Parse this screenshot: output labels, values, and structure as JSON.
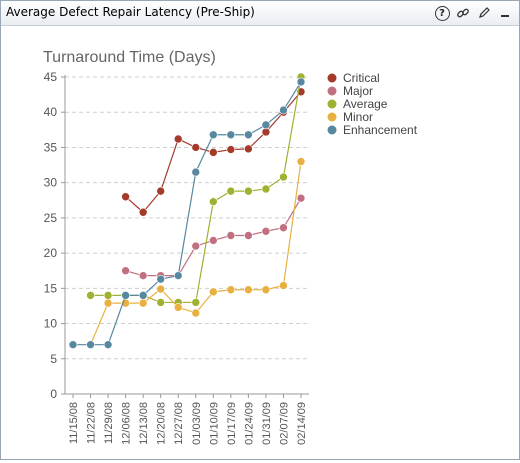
{
  "window": {
    "title": "Average Defect Repair Latency (Pre-Ship)",
    "toolbar_icons": [
      "help-icon",
      "link-icon",
      "edit-icon",
      "minimize-icon"
    ],
    "help_glyph": "?"
  },
  "chart_data": {
    "type": "line",
    "title": "Turnaround Time (Days)",
    "xlabel": "",
    "ylabel": "",
    "ylim": [
      0,
      45
    ],
    "yticks": [
      0,
      5,
      10,
      15,
      20,
      25,
      30,
      35,
      40,
      45
    ],
    "ytick_labels": [
      "0",
      "5",
      "10",
      "15",
      "20",
      "25",
      "30",
      "35",
      "40",
      "45"
    ],
    "grid": true,
    "legend_position": "top-right",
    "categories": [
      "11/15/08",
      "11/22/08",
      "11/29/08",
      "12/06/08",
      "12/13/08",
      "12/20/08",
      "12/27/08",
      "01/03/09",
      "01/10/09",
      "01/17/09",
      "01/24/09",
      "01/31/09",
      "02/07/09",
      "02/14/09"
    ],
    "series": [
      {
        "name": "Critical",
        "color": "#a43a2a",
        "values": [
          null,
          null,
          null,
          28,
          25.8,
          28.8,
          36.2,
          35,
          34.3,
          34.7,
          34.8,
          37.2,
          40,
          42.9
        ]
      },
      {
        "name": "Major",
        "color": "#c07080",
        "values": [
          null,
          null,
          null,
          17.5,
          16.8,
          16.8,
          16.8,
          21,
          21.8,
          22.5,
          22.5,
          23.1,
          23.6,
          27.8
        ]
      },
      {
        "name": "Average",
        "color": "#a0b030",
        "values": [
          null,
          14,
          14,
          14,
          14,
          13,
          13,
          13,
          27.3,
          28.8,
          28.8,
          29.1,
          30.8,
          45
        ]
      },
      {
        "name": "Minor",
        "color": "#e8b040",
        "values": [
          null,
          7,
          12.9,
          12.9,
          12.9,
          14.9,
          12.3,
          11.5,
          14.5,
          14.8,
          14.8,
          14.8,
          15.4,
          33
        ]
      },
      {
        "name": "Enhancement",
        "color": "#5888a0",
        "values": [
          7,
          7,
          7,
          14,
          14,
          16.3,
          16.8,
          31.5,
          36.8,
          36.8,
          36.8,
          38.2,
          40.3,
          44.3
        ]
      }
    ]
  }
}
